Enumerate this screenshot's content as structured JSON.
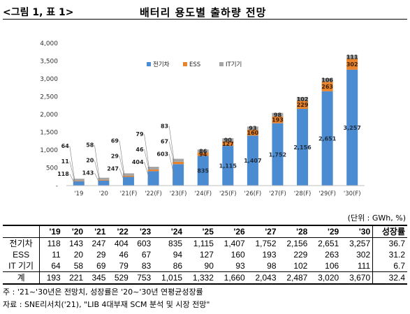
{
  "figure_label": "<그림 1, 표 1>",
  "title": "배터리 용도별 출하량 전망",
  "unit": "(단위 : GWh, %)",
  "chart_data": {
    "type": "bar",
    "stacked": true,
    "categories": [
      "'19",
      "'20",
      "'21(F)",
      "'22(F)",
      "'23(F)",
      "'24(F)",
      "'25(F)",
      "'26(F)",
      "'27(F)",
      "'28(F)",
      "'29(F)",
      "'30(F)"
    ],
    "series": [
      {
        "name": "전기차",
        "color": "#4a8bd1",
        "values": [
          118,
          143,
          247,
          404,
          603,
          835,
          1115,
          1407,
          1752,
          2156,
          2651,
          3257
        ],
        "labels": [
          "118",
          "143",
          "247",
          "404",
          "603",
          "835",
          "1,115",
          "1,407",
          "1,752",
          "2,156",
          "2,651",
          "3,257"
        ]
      },
      {
        "name": "ESS",
        "color": "#e8832e",
        "values": [
          11,
          20,
          29,
          46,
          67,
          94,
          127,
          160,
          193,
          229,
          263,
          302
        ],
        "labels": [
          "11",
          "20",
          "29",
          "46",
          "67",
          "94",
          "127",
          "160",
          "193",
          "229",
          "263",
          "302"
        ]
      },
      {
        "name": "IT기기",
        "color": "#a5a5a5",
        "values": [
          64,
          58,
          69,
          79,
          83,
          86,
          90,
          93,
          98,
          102,
          106,
          111
        ],
        "labels": [
          "64",
          "58",
          "69",
          "79",
          "83",
          "86",
          "90",
          "93",
          "98",
          "102",
          "106",
          "111"
        ]
      }
    ],
    "ylim": [
      0,
      4000
    ],
    "yticks": [
      "-",
      "500",
      "1,000",
      "1,500",
      "2,000",
      "2,500",
      "3,000",
      "3,500",
      "4,000"
    ],
    "grid": false,
    "legend": "top-center"
  },
  "table": {
    "headers": [
      "",
      "'19",
      "'20",
      "'21",
      "'22",
      "'23",
      "'24",
      "'25",
      "'26",
      "'27",
      "'28",
      "'29",
      "'30",
      "성장률"
    ],
    "rows": [
      [
        "전기차",
        "118",
        "143",
        "247",
        "404",
        "603",
        "835",
        "1,115",
        "1,407",
        "1,752",
        "2,156",
        "2,651",
        "3,257",
        "36.7"
      ],
      [
        "ESS",
        "11",
        "20",
        "29",
        "46",
        "67",
        "94",
        "127",
        "160",
        "193",
        "229",
        "263",
        "302",
        "31.2"
      ],
      [
        "IT 기기",
        "64",
        "58",
        "69",
        "79",
        "83",
        "86",
        "90",
        "93",
        "98",
        "102",
        "106",
        "111",
        "6.7"
      ],
      [
        "계",
        "193",
        "221",
        "345",
        "529",
        "753",
        "1,015",
        "1,332",
        "1,660",
        "2,043",
        "2,487",
        "3,020",
        "3,670",
        "32.4"
      ]
    ]
  },
  "notes": [
    "주   : '21~'30년은 전망치, 성장률은 '20~'30년 연평균성장률",
    "자료 : SNE리서치('21), \"LIB 4대부재 SCM 분석 및 시장 전망\""
  ]
}
